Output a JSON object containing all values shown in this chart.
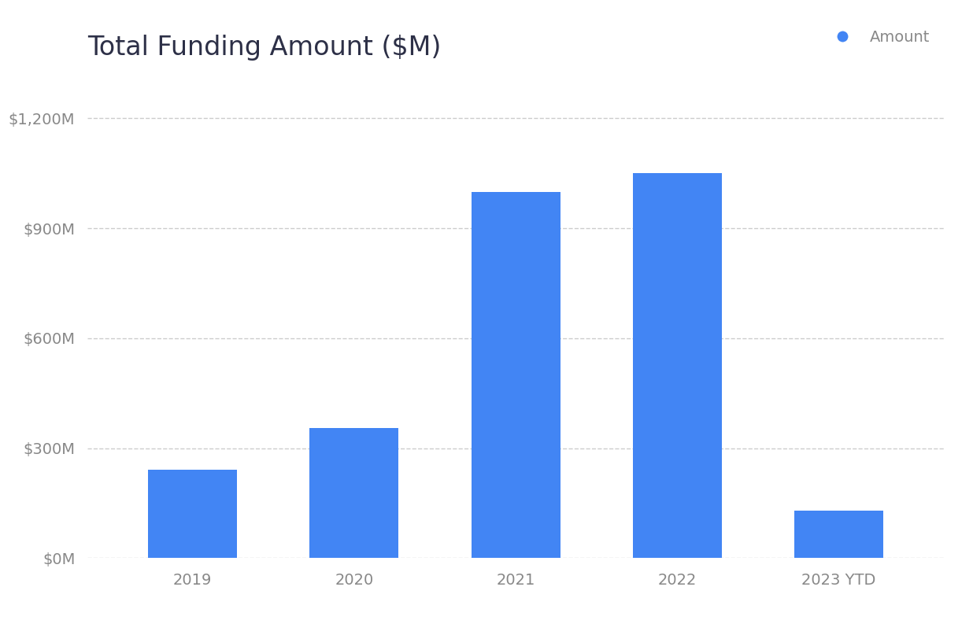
{
  "title": "Total Funding Amount ($M)",
  "categories": [
    "2019",
    "2020",
    "2021",
    "2022",
    "2023 YTD"
  ],
  "values": [
    240,
    355,
    1000,
    1050,
    130
  ],
  "bar_color": "#4285F4",
  "legend_label": "Amount",
  "legend_dot_color": "#4285F4",
  "yticks": [
    0,
    300,
    600,
    900,
    1200
  ],
  "ytick_labels": [
    "$0M",
    "$300M",
    "$600M",
    "$900M",
    "$1,200M"
  ],
  "ylim": [
    0,
    1320
  ],
  "background_color": "#ffffff",
  "title_color": "#2d3047",
  "tick_color": "#888888",
  "grid_color": "#cccccc",
  "title_fontsize": 24,
  "tick_fontsize": 14,
  "legend_fontsize": 14,
  "bar_width": 0.55
}
